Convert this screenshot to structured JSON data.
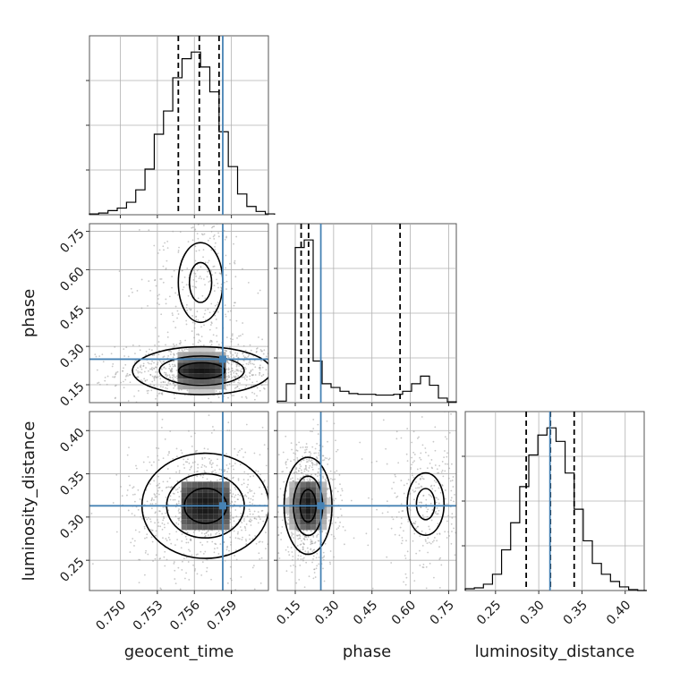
{
  "chart_data": {
    "type": "corner",
    "parameters": [
      {
        "name": "geocent_time",
        "label": "geocent_time",
        "truth": 0.7583,
        "range": [
          0.7475,
          0.762
        ],
        "ticks": [
          0.75,
          0.753,
          0.756,
          0.759
        ],
        "tick_labels": [
          "0.750",
          "0.753",
          "0.756",
          "0.759"
        ]
      },
      {
        "name": "phase",
        "label": "phase",
        "truth": 0.25,
        "range": [
          0.08,
          0.78
        ],
        "ticks": [
          0.15,
          0.3,
          0.45,
          0.6,
          0.75
        ],
        "tick_labels": [
          "0.15",
          "0.30",
          "0.45",
          "0.60",
          "0.75"
        ]
      },
      {
        "name": "luminosity_distance",
        "label": "luminosity_distance",
        "truth": 0.313,
        "range": [
          0.215,
          0.422
        ],
        "ticks": [
          0.25,
          0.3,
          0.35,
          0.4
        ],
        "tick_labels": [
          "0.25",
          "0.30",
          "0.35",
          "0.40"
        ]
      }
    ],
    "histograms": [
      {
        "param": "geocent_time",
        "quantiles": [
          0.7547,
          0.7564,
          0.758
        ],
        "bin_edges": [
          0.7475,
          0.74825,
          0.749,
          0.74975,
          0.7505,
          0.75125,
          0.752,
          0.75275,
          0.7535,
          0.75425,
          0.755,
          0.75575,
          0.7565,
          0.75725,
          0.758,
          0.75875,
          0.7595,
          0.76025,
          0.761,
          0.76175,
          0.7625
        ],
        "counts": [
          1,
          2,
          5,
          8,
          15,
          30,
          55,
          97,
          125,
          165,
          188,
          196,
          178,
          148,
          100,
          58,
          25,
          10,
          4,
          1
        ]
      },
      {
        "param": "phase",
        "quantiles": [
          0.173,
          0.202,
          0.56
        ],
        "bin_edges": [
          0.08,
          0.115,
          0.15,
          0.185,
          0.22,
          0.255,
          0.29,
          0.325,
          0.36,
          0.395,
          0.43,
          0.465,
          0.5,
          0.535,
          0.57,
          0.605,
          0.64,
          0.675,
          0.71,
          0.745,
          0.78
        ],
        "counts": [
          2,
          25,
          205,
          215,
          55,
          25,
          20,
          15,
          12,
          11,
          11,
          10,
          10,
          11,
          15,
          25,
          35,
          23,
          6,
          1
        ]
      },
      {
        "param": "luminosity_distance",
        "quantiles": [
          0.2855,
          0.3135,
          0.341
        ],
        "bin_edges": [
          0.215,
          0.2255,
          0.236,
          0.2465,
          0.257,
          0.2675,
          0.278,
          0.2885,
          0.299,
          0.3095,
          0.32,
          0.3305,
          0.341,
          0.3515,
          0.362,
          0.3725,
          0.383,
          0.3935,
          0.404,
          0.4145,
          0.425
        ],
        "counts": [
          2,
          3,
          7,
          18,
          45,
          75,
          115,
          150,
          172,
          180,
          165,
          130,
          90,
          55,
          30,
          18,
          10,
          4,
          1,
          0
        ]
      }
    ],
    "pairs": [
      {
        "x": "geocent_time",
        "y": "phase",
        "center": [
          0.7566,
          0.205
        ],
        "spread": [
          0.0024,
          0.04
        ],
        "secondary": {
          "center": [
            0.7565,
            0.55
          ],
          "spread": [
            0.0015,
            0.13
          ]
        }
      },
      {
        "x": "geocent_time",
        "y": "luminosity_distance",
        "center": [
          0.7569,
          0.313
        ],
        "spread": [
          0.0022,
          0.026
        ]
      },
      {
        "x": "phase",
        "y": "luminosity_distance",
        "center": [
          0.2,
          0.313
        ],
        "spread": [
          0.04,
          0.024
        ],
        "secondary": {
          "center": [
            0.66,
            0.315
          ],
          "spread": [
            0.06,
            0.03
          ]
        }
      }
    ],
    "truth_color": "#4682b4",
    "quantile_style": "dashed",
    "grid": true
  }
}
